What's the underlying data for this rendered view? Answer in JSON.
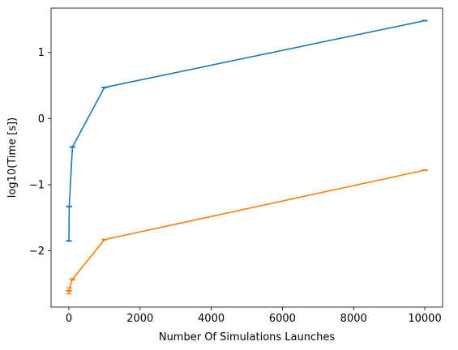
{
  "chart_data": {
    "type": "line",
    "title": "",
    "xlabel": "Number Of Simulations Launches",
    "ylabel": "log10(Time [s])",
    "xlim": [
      -500,
      10500
    ],
    "ylim": [
      -2.85,
      1.67
    ],
    "xticks": [
      0,
      2000,
      4000,
      6000,
      8000,
      10000
    ],
    "yticks": [
      -2,
      -1,
      0,
      1
    ],
    "grid": false,
    "legend": "none",
    "series": [
      {
        "color": "#1f77b4",
        "x": [
          1,
          10,
          100,
          1000,
          10000
        ],
        "y": [
          -1.85,
          -1.33,
          -0.43,
          0.47,
          1.48
        ],
        "err": [
          0.005,
          0.005,
          0.005,
          0.005,
          0.005
        ]
      },
      {
        "color": "#ff7f0e",
        "x": [
          1,
          10,
          100,
          1000,
          10000
        ],
        "y": [
          -2.63,
          -2.58,
          -2.43,
          -1.83,
          -0.78
        ],
        "err": [
          0.02,
          0.02,
          0.01,
          0.005,
          0.005
        ]
      }
    ]
  }
}
